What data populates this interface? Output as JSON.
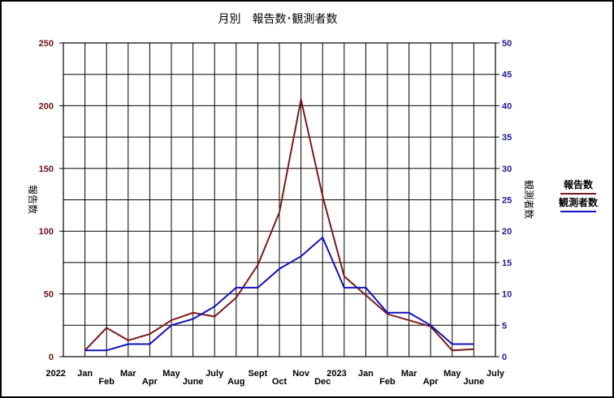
{
  "chart_data": {
    "type": "line",
    "title": "月別　報告数･観測者数",
    "ylabel_left": "報告数",
    "ylabel_right": "観測者数",
    "ylim_left": [
      0,
      250
    ],
    "ylim_right": [
      0,
      50
    ],
    "yticks_left": [
      "0",
      "50",
      "100",
      "150",
      "200",
      "250"
    ],
    "yticks_right": [
      "0",
      "5",
      "10",
      "15",
      "20",
      "25",
      "30",
      "35",
      "40",
      "45",
      "50"
    ],
    "x_tick_labels": [
      {
        "text": "2022",
        "row": 0
      },
      {
        "text": "Jan",
        "row": 0
      },
      {
        "text": "Feb",
        "row": 1
      },
      {
        "text": "Mar",
        "row": 0
      },
      {
        "text": "Apr",
        "row": 1
      },
      {
        "text": "May",
        "row": 0
      },
      {
        "text": "June",
        "row": 1
      },
      {
        "text": "July",
        "row": 0
      },
      {
        "text": "Aug",
        "row": 1
      },
      {
        "text": "Sept",
        "row": 0
      },
      {
        "text": "Oct",
        "row": 1
      },
      {
        "text": "Nov",
        "row": 0
      },
      {
        "text": "Dec",
        "row": 1
      },
      {
        "text": "2023",
        "row": 0
      },
      {
        "text": "Jan",
        "row": 0
      },
      {
        "text": "Feb",
        "row": 1
      },
      {
        "text": "Mar",
        "row": 0
      },
      {
        "text": "Apr",
        "row": 1
      },
      {
        "text": "May",
        "row": 0
      },
      {
        "text": "June",
        "row": 1
      },
      {
        "text": "July",
        "row": 0
      }
    ],
    "x": [
      "2022-01",
      "2022-02",
      "2022-03",
      "2022-04",
      "2022-05",
      "2022-06",
      "2022-07",
      "2022-08",
      "2022-09",
      "2022-10",
      "2022-11",
      "2022-12",
      "2023-01",
      "2023-02",
      "2023-03",
      "2023-04",
      "2023-05",
      "2023-06",
      "2023-07"
    ],
    "series": [
      {
        "name": "報告数",
        "axis": "left",
        "color": "#7a1a1a",
        "values": [
          5,
          23,
          13,
          18,
          29,
          35,
          32,
          47,
          73,
          115,
          205,
          128,
          64,
          49,
          34,
          29,
          24,
          5,
          6
        ]
      },
      {
        "name": "観測者数",
        "axis": "right",
        "color": "#1010c0",
        "values": [
          1,
          1,
          2,
          2,
          5,
          6,
          8,
          11,
          11,
          14,
          16,
          19,
          11,
          11,
          7,
          7,
          5,
          2,
          2
        ]
      }
    ],
    "grid": true,
    "legend_position": "right"
  }
}
